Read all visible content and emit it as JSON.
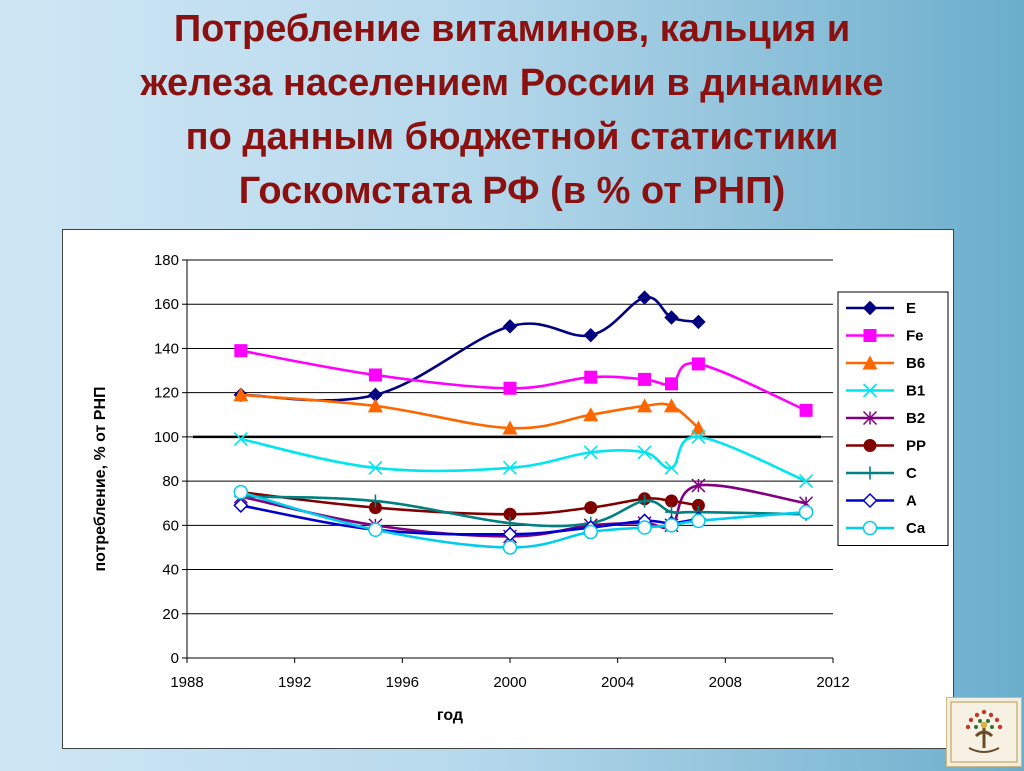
{
  "slide": {
    "title_lines": [
      "Потребление витаминов, кальция и",
      "железа населением России в динамике",
      "по данным бюджетной статистики",
      "Госкомстата РФ (в % от РНП)"
    ]
  },
  "logo": {
    "icon": "organization-logo-icon"
  },
  "chart_data": {
    "type": "line",
    "xlabel": "год",
    "ylabel": "потребление, % от РНП",
    "xlim": [
      1988,
      2012
    ],
    "ylim": [
      0,
      180
    ],
    "xticks": [
      "1988",
      "1992",
      "1996",
      "2000",
      "2004",
      "2008",
      "2012"
    ],
    "yticks": [
      "0",
      "20",
      "40",
      "60",
      "80",
      "100",
      "120",
      "140",
      "160",
      "180"
    ],
    "grid": "horizontal",
    "reference_line": 100,
    "legend_position": "right",
    "series": [
      {
        "name": "E",
        "color": "#000080",
        "marker": "diamond-filled",
        "x": [
          1990,
          1995,
          2000,
          2003,
          2005,
          2006,
          2007
        ],
        "y": [
          119,
          119,
          150,
          146,
          163,
          154,
          152
        ]
      },
      {
        "name": "Fe",
        "color": "#ff00ff",
        "marker": "square-filled",
        "x": [
          1990,
          1995,
          2000,
          2003,
          2005,
          2006,
          2007,
          2011
        ],
        "y": [
          139,
          128,
          122,
          127,
          126,
          124,
          133,
          112
        ]
      },
      {
        "name": "B6",
        "color": "#ff6600",
        "marker": "triangle-filled",
        "x": [
          1990,
          1995,
          2000,
          2003,
          2005,
          2006,
          2007
        ],
        "y": [
          119,
          114,
          104,
          110,
          114,
          114,
          104
        ]
      },
      {
        "name": "B1",
        "color": "#00e5ee",
        "marker": "x",
        "x": [
          1990,
          1995,
          2000,
          2003,
          2005,
          2006,
          2007,
          2011
        ],
        "y": [
          99,
          86,
          86,
          93,
          93,
          86,
          100,
          80
        ]
      },
      {
        "name": "B2",
        "color": "#800080",
        "marker": "star",
        "x": [
          1990,
          1995,
          2000,
          2003,
          2005,
          2006,
          2007,
          2011
        ],
        "y": [
          73,
          60,
          55,
          60,
          61,
          60,
          78,
          70
        ]
      },
      {
        "name": "PP",
        "color": "#800000",
        "marker": "circle-filled",
        "x": [
          1990,
          1995,
          2000,
          2003,
          2005,
          2006,
          2007
        ],
        "y": [
          75,
          68,
          65,
          68,
          72,
          71,
          69
        ]
      },
      {
        "name": "C",
        "color": "#008080",
        "marker": "plus",
        "x": [
          1990,
          1995,
          2000,
          2003,
          2005,
          2006,
          2007,
          2011
        ],
        "y": [
          73,
          71,
          61,
          61,
          71,
          66,
          66,
          65
        ]
      },
      {
        "name": "A",
        "color": "#0000cc",
        "marker": "diamond-open",
        "x": [
          1990,
          1995,
          2000,
          2003,
          2005,
          2006,
          2007
        ],
        "y": [
          69,
          58,
          56,
          59,
          62,
          61,
          63
        ]
      },
      {
        "name": "Ca",
        "color": "#00ccee",
        "marker": "circle-open",
        "x": [
          1990,
          1995,
          2000,
          2003,
          2005,
          2006,
          2007,
          2011
        ],
        "y": [
          75,
          58,
          50,
          57,
          59,
          60,
          62,
          66
        ]
      }
    ]
  }
}
